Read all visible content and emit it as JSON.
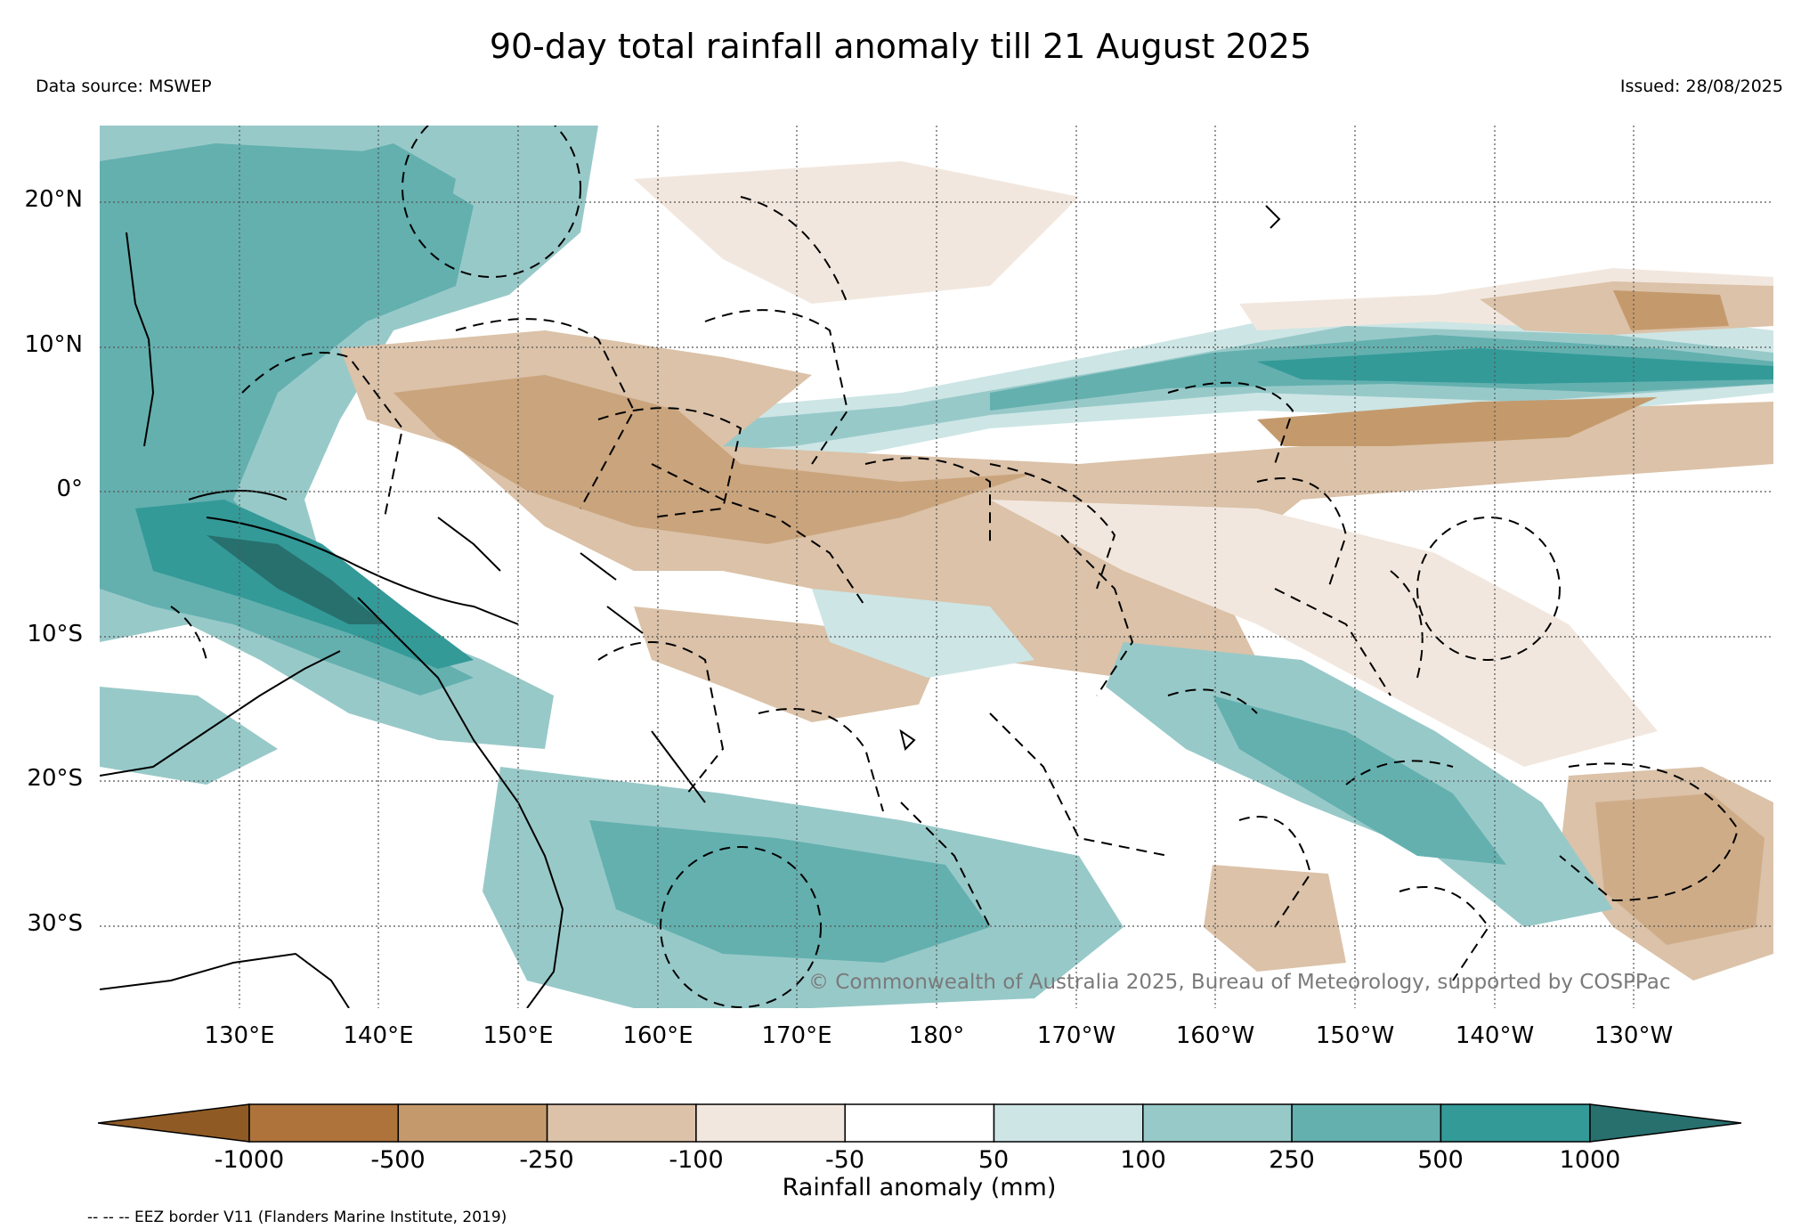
{
  "title": "90-day total rainfall anomaly till 21 August 2025",
  "data_source": "Data source: MSWEP",
  "issued": "Issued: 28/08/2025",
  "copyright": "© Commonwealth of Australia 2025, Bureau of Meteorology, supported by COSPPac",
  "map": {
    "lon_range_deg_east": [
      120,
      240
    ],
    "lat_range_deg": [
      -36,
      25
    ],
    "lat_ticks": [
      {
        "value": 20,
        "label": "20°N"
      },
      {
        "value": 10,
        "label": "10°N"
      },
      {
        "value": 0,
        "label": "0°"
      },
      {
        "value": -10,
        "label": "10°S"
      },
      {
        "value": -20,
        "label": "20°S"
      },
      {
        "value": -30,
        "label": "30°S"
      }
    ],
    "lon_ticks": [
      {
        "value": 130,
        "label": "130°E"
      },
      {
        "value": 140,
        "label": "140°E"
      },
      {
        "value": 150,
        "label": "150°E"
      },
      {
        "value": 160,
        "label": "160°E"
      },
      {
        "value": 170,
        "label": "170°E"
      },
      {
        "value": 180,
        "label": "180°"
      },
      {
        "value": 190,
        "label": "170°W"
      },
      {
        "value": 200,
        "label": "160°W"
      },
      {
        "value": 210,
        "label": "150°W"
      },
      {
        "value": 220,
        "label": "140°W"
      },
      {
        "value": 230,
        "label": "130°W"
      }
    ]
  },
  "colorbar": {
    "title": "Rainfall anomaly (mm)",
    "ticks": [
      "-1000",
      "-500",
      "-250",
      "-100",
      "-50",
      "50",
      "100",
      "250",
      "500",
      "1000"
    ],
    "colors": {
      "under": "#8f5a24",
      "bins": [
        "#ad733b",
        "#c49a6d",
        "#dbc2a8",
        "#f2e7de",
        "#ffffff",
        "#cde5e5",
        "#98c9c9",
        "#63b0af",
        "#339a98"
      ],
      "over": "#27706e"
    }
  },
  "footnote": "-- -- -- EEZ border V11 (Flanders Marine Institute, 2019)"
}
